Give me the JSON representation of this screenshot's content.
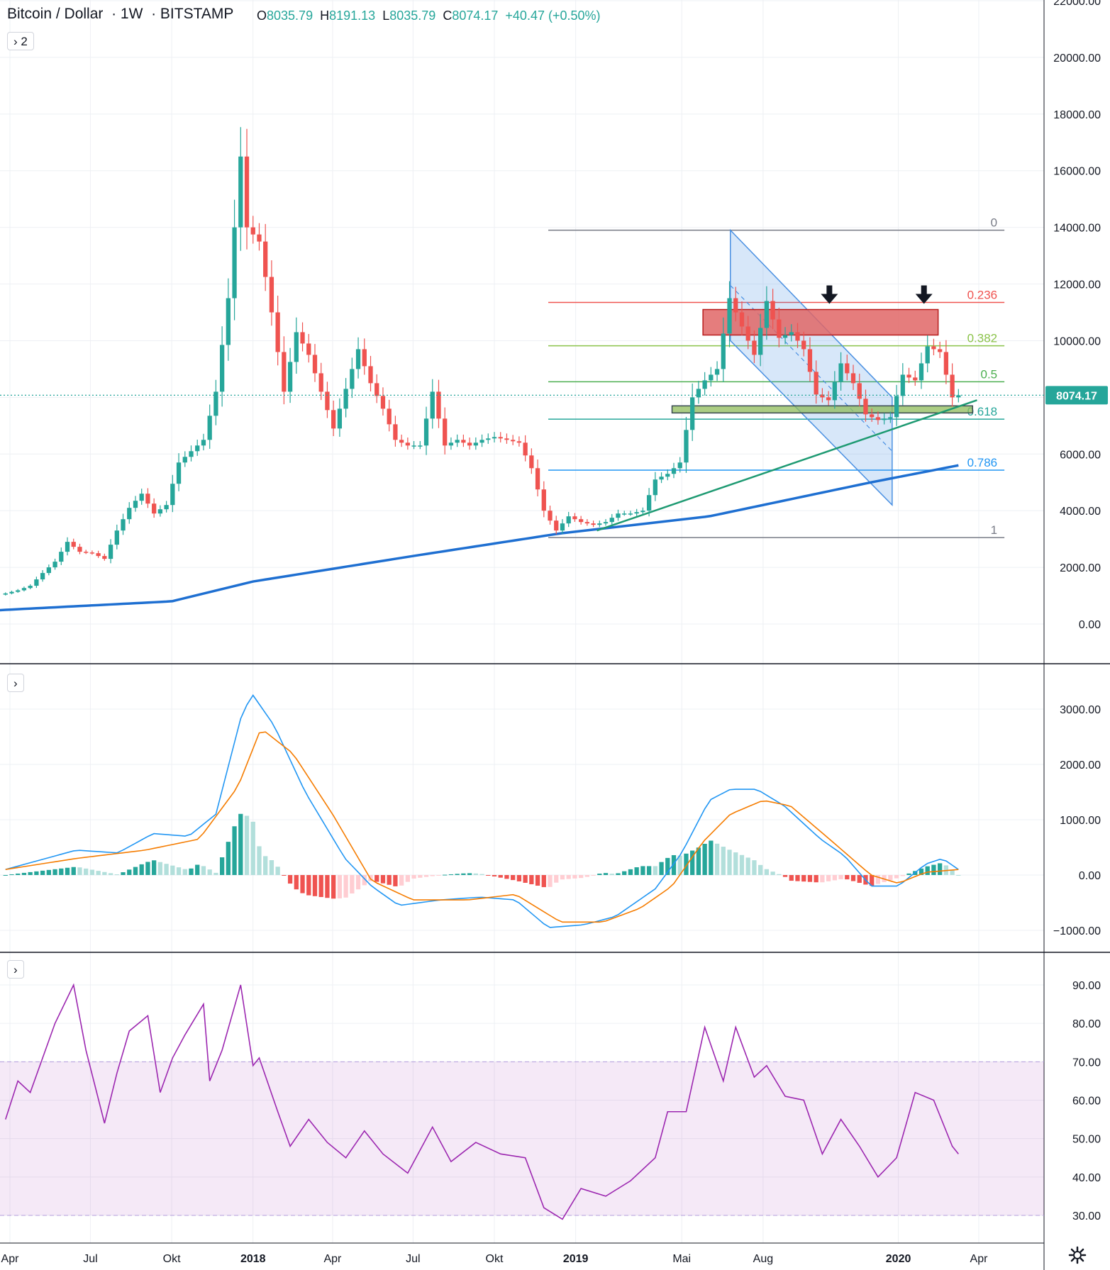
{
  "header": {
    "symbol": "Bitcoin / Dollar",
    "interval": "1W",
    "exchange": "BITSTAMP",
    "o_label": "O",
    "o_value": "8035.79",
    "h_label": "H",
    "h_value": "8191.13",
    "l_label": "L",
    "l_value": "8035.79",
    "c_label": "C",
    "c_value": "8074.17",
    "change": "+40.47 (+0.50%)"
  },
  "toggles": {
    "main": "2",
    "macd": "",
    "rsi": ""
  },
  "icons": {
    "collapse": "chevron-right-icon",
    "settings": "gear-icon"
  },
  "colors": {
    "up": "#26a69a",
    "down": "#ef5350",
    "ma": "#1e6fd1",
    "trendline": "#1e9a72",
    "channel": "#4a90e2",
    "resistance_zone": "#e06666",
    "support_zone": "#8fbc5a",
    "macd_line": "#2196f3",
    "signal_line": "#f57c00",
    "rsi": "#9c27b0",
    "rsi_band": "#e9d5f7",
    "price_tag": "#26a69a"
  },
  "chart_data": [
    {
      "type": "candlestick",
      "title": "Bitcoin / Dollar · 1W · BITSTAMP",
      "ylim": [
        -1100,
        22000
      ],
      "ytick_labels": [
        "22000.00",
        "20000.00",
        "18000.00",
        "16000.00",
        "14000.00",
        "12000.00",
        "10000.00",
        "8000.00",
        "6000.00",
        "4000.00",
        "2000.00",
        "0.00"
      ],
      "yticks": [
        22000,
        20000,
        18000,
        16000,
        14000,
        12000,
        10000,
        8000,
        6000,
        4000,
        2000,
        0
      ],
      "xtick_labels": [
        "Apr",
        "Jul",
        "Okt",
        "2018",
        "Apr",
        "Jul",
        "Okt",
        "2019",
        "Mai",
        "Aug",
        "2020",
        "Apr"
      ],
      "xticks": [
        "2017-04-01",
        "2017-07-01",
        "2017-10-01",
        "2018-01-01",
        "2018-04-01",
        "2018-07-01",
        "2018-10-01",
        "2019-01-01",
        "2019-05-01",
        "2019-08-01",
        "2020-01-01",
        "2020-04-01"
      ],
      "last_price": 8074.17,
      "last_price_label": "8074.17",
      "weekly_closes_approx": [
        [
          "2017-03-27",
          1080
        ],
        [
          "2017-04-10",
          1190
        ],
        [
          "2017-04-24",
          1350
        ],
        [
          "2017-05-08",
          1800
        ],
        [
          "2017-05-22",
          2200
        ],
        [
          "2017-06-05",
          2900
        ],
        [
          "2017-06-19",
          2550
        ],
        [
          "2017-07-03",
          2500
        ],
        [
          "2017-07-17",
          2300
        ],
        [
          "2017-07-31",
          3300
        ],
        [
          "2017-08-14",
          4100
        ],
        [
          "2017-08-28",
          4600
        ],
        [
          "2017-09-11",
          3900
        ],
        [
          "2017-09-25",
          4200
        ],
        [
          "2017-10-09",
          5700
        ],
        [
          "2017-10-23",
          6100
        ],
        [
          "2017-11-06",
          6500
        ],
        [
          "2017-11-20",
          8200
        ],
        [
          "2017-12-04",
          11500
        ],
        [
          "2017-12-18",
          16500
        ],
        [
          "2017-12-25",
          14000
        ],
        [
          "2018-01-08",
          13500
        ],
        [
          "2018-01-22",
          11000
        ],
        [
          "2018-02-05",
          8200
        ],
        [
          "2018-02-19",
          10300
        ],
        [
          "2018-03-05",
          9500
        ],
        [
          "2018-03-19",
          8200
        ],
        [
          "2018-04-02",
          6900
        ],
        [
          "2018-04-16",
          8300
        ],
        [
          "2018-04-30",
          9700
        ],
        [
          "2018-05-14",
          8500
        ],
        [
          "2018-05-28",
          7600
        ],
        [
          "2018-06-11",
          6500
        ],
        [
          "2018-06-25",
          6300
        ],
        [
          "2018-07-09",
          6300
        ],
        [
          "2018-07-23",
          8200
        ],
        [
          "2018-08-06",
          6300
        ],
        [
          "2018-08-20",
          6500
        ],
        [
          "2018-09-03",
          6300
        ],
        [
          "2018-09-17",
          6500
        ],
        [
          "2018-10-01",
          6600
        ],
        [
          "2018-10-15",
          6500
        ],
        [
          "2018-10-29",
          6400
        ],
        [
          "2018-11-12",
          5500
        ],
        [
          "2018-11-26",
          4000
        ],
        [
          "2018-12-10",
          3300
        ],
        [
          "2018-12-24",
          3800
        ],
        [
          "2019-01-07",
          3600
        ],
        [
          "2019-01-21",
          3500
        ],
        [
          "2019-02-04",
          3600
        ],
        [
          "2019-02-18",
          3900
        ],
        [
          "2019-03-04",
          3900
        ],
        [
          "2019-03-18",
          4000
        ],
        [
          "2019-04-01",
          5100
        ],
        [
          "2019-04-15",
          5300
        ],
        [
          "2019-04-29",
          5700
        ],
        [
          "2019-05-13",
          8000
        ],
        [
          "2019-05-27",
          8600
        ],
        [
          "2019-06-10",
          9000
        ],
        [
          "2019-06-24",
          11500
        ],
        [
          "2019-07-08",
          10500
        ],
        [
          "2019-07-22",
          9500
        ],
        [
          "2019-08-05",
          11400
        ],
        [
          "2019-08-19",
          10100
        ],
        [
          "2019-09-02",
          10300
        ],
        [
          "2019-09-16",
          9700
        ],
        [
          "2019-09-30",
          8100
        ],
        [
          "2019-10-14",
          7900
        ],
        [
          "2019-10-28",
          9200
        ],
        [
          "2019-11-11",
          8500
        ],
        [
          "2019-11-25",
          7400
        ],
        [
          "2019-12-09",
          7200
        ],
        [
          "2019-12-23",
          7300
        ],
        [
          "2020-01-06",
          8800
        ],
        [
          "2020-01-20",
          8600
        ],
        [
          "2020-02-03",
          9800
        ],
        [
          "2020-02-17",
          9600
        ],
        [
          "2020-03-02",
          8000
        ],
        [
          "2020-03-09",
          8074.17
        ]
      ],
      "moving_average_approx": [
        [
          "2017-03-27",
          500
        ],
        [
          "2017-10-01",
          800
        ],
        [
          "2018-01-01",
          1500
        ],
        [
          "2018-07-01",
          2400
        ],
        [
          "2018-12-15",
          3200
        ],
        [
          "2019-06-01",
          3800
        ],
        [
          "2019-12-01",
          5000
        ],
        [
          "2020-03-09",
          5600
        ]
      ],
      "fibonacci": {
        "start_date": "2018-12-01",
        "end_date": "2020-04-30",
        "levels": [
          {
            "label": "0",
            "price": 13900
          },
          {
            "label": "0.236",
            "price": 11350
          },
          {
            "label": "0.382",
            "price": 9820
          },
          {
            "label": "0.5",
            "price": 8550
          },
          {
            "label": "0.618",
            "price": 7230
          },
          {
            "label": "0.786",
            "price": 5430
          },
          {
            "label": "1",
            "price": 3050
          }
        ]
      },
      "annotations": [
        {
          "kind": "resistance-zone",
          "from": "2019-05-25",
          "to": "2020-02-15",
          "low": 10200,
          "high": 11100
        },
        {
          "kind": "support-zone",
          "from": "2019-04-20",
          "to": "2020-03-25",
          "low": 7450,
          "high": 7700
        },
        {
          "kind": "trendline",
          "points": [
            [
              "2019-01-25",
              3300
            ],
            [
              "2020-03-30",
              7900
            ]
          ]
        },
        {
          "kind": "descending-channel",
          "points": [
            [
              "2019-06-25",
              13900
            ],
            [
              "2019-12-25",
              8000
            ],
            [
              "2019-12-25",
              4200
            ],
            [
              "2019-06-25",
              10000
            ]
          ]
        },
        {
          "kind": "arrow-down",
          "date": "2019-10-15",
          "price": 11400
        },
        {
          "kind": "arrow-down",
          "date": "2020-01-30",
          "price": 11400
        }
      ]
    },
    {
      "type": "line",
      "title": "MACD",
      "ylim": [
        -1350,
        3600
      ],
      "ytick_labels": [
        "3000.00",
        "2000.00",
        "1000.00",
        "0.00",
        "−1000.00"
      ],
      "yticks": [
        3000,
        2000,
        1000,
        0,
        -1000
      ],
      "macd_approx": [
        [
          "2017-03-27",
          100
        ],
        [
          "2017-06-15",
          450
        ],
        [
          "2017-08-01",
          400
        ],
        [
          "2017-09-10",
          750
        ],
        [
          "2017-10-20",
          700
        ],
        [
          "2017-11-20",
          1100
        ],
        [
          "2017-12-20",
          2950
        ],
        [
          "2018-01-01",
          3250
        ],
        [
          "2018-01-25",
          2700
        ],
        [
          "2018-03-01",
          1500
        ],
        [
          "2018-04-15",
          300
        ],
        [
          "2018-05-15",
          -200
        ],
        [
          "2018-06-15",
          -550
        ],
        [
          "2018-08-01",
          -450
        ],
        [
          "2018-09-15",
          -400
        ],
        [
          "2018-10-25",
          -450
        ],
        [
          "2018-12-01",
          -950
        ],
        [
          "2019-01-10",
          -900
        ],
        [
          "2019-02-15",
          -750
        ],
        [
          "2019-04-01",
          -250
        ],
        [
          "2019-05-01",
          400
        ],
        [
          "2019-06-01",
          1350
        ],
        [
          "2019-06-25",
          1550
        ],
        [
          "2019-07-25",
          1550
        ],
        [
          "2019-08-25",
          1250
        ],
        [
          "2019-10-05",
          650
        ],
        [
          "2019-11-01",
          350
        ],
        [
          "2019-12-01",
          -200
        ],
        [
          "2020-01-01",
          -200
        ],
        [
          "2020-02-01",
          200
        ],
        [
          "2020-02-20",
          300
        ],
        [
          "2020-03-09",
          100
        ]
      ],
      "signal_approx": [
        [
          "2017-03-27",
          100
        ],
        [
          "2017-06-15",
          300
        ],
        [
          "2017-09-01",
          450
        ],
        [
          "2017-11-01",
          650
        ],
        [
          "2017-12-15",
          1600
        ],
        [
          "2018-01-10",
          2650
        ],
        [
          "2018-02-15",
          2200
        ],
        [
          "2018-04-01",
          1100
        ],
        [
          "2018-05-15",
          -100
        ],
        [
          "2018-07-01",
          -450
        ],
        [
          "2018-09-01",
          -450
        ],
        [
          "2018-10-25",
          -350
        ],
        [
          "2018-12-15",
          -850
        ],
        [
          "2019-02-01",
          -850
        ],
        [
          "2019-03-15",
          -600
        ],
        [
          "2019-04-20",
          -200
        ],
        [
          "2019-05-25",
          600
        ],
        [
          "2019-06-25",
          1100
        ],
        [
          "2019-08-01",
          1350
        ],
        [
          "2019-09-01",
          1250
        ],
        [
          "2019-10-15",
          650
        ],
        [
          "2019-12-01",
          0
        ],
        [
          "2020-01-01",
          -150
        ],
        [
          "2020-02-01",
          50
        ],
        [
          "2020-03-09",
          100
        ]
      ]
    },
    {
      "type": "line",
      "title": "RSI",
      "ylim": [
        26,
        97
      ],
      "ytick_labels": [
        "90.00",
        "80.00",
        "70.00",
        "60.00",
        "50.00",
        "40.00",
        "30.00"
      ],
      "yticks": [
        90,
        80,
        70,
        60,
        50,
        40,
        30
      ],
      "band": [
        30,
        70
      ],
      "rsi_approx": [
        [
          "2017-03-27",
          55
        ],
        [
          "2017-04-10",
          65
        ],
        [
          "2017-04-24",
          62
        ],
        [
          "2017-05-22",
          80
        ],
        [
          "2017-06-12",
          90
        ],
        [
          "2017-06-26",
          73
        ],
        [
          "2017-07-17",
          54
        ],
        [
          "2017-07-31",
          67
        ],
        [
          "2017-08-14",
          78
        ],
        [
          "2017-09-04",
          82
        ],
        [
          "2017-09-18",
          62
        ],
        [
          "2017-10-02",
          71
        ],
        [
          "2017-10-16",
          77
        ],
        [
          "2017-11-06",
          85
        ],
        [
          "2017-11-13",
          65
        ],
        [
          "2017-11-27",
          73
        ],
        [
          "2017-12-18",
          90
        ],
        [
          "2018-01-01",
          69
        ],
        [
          "2018-01-08",
          71
        ],
        [
          "2018-01-29",
          57
        ],
        [
          "2018-02-12",
          48
        ],
        [
          "2018-03-05",
          55
        ],
        [
          "2018-03-26",
          49
        ],
        [
          "2018-04-16",
          45
        ],
        [
          "2018-05-07",
          52
        ],
        [
          "2018-05-28",
          46
        ],
        [
          "2018-06-25",
          41
        ],
        [
          "2018-07-23",
          53
        ],
        [
          "2018-08-13",
          44
        ],
        [
          "2018-09-10",
          49
        ],
        [
          "2018-10-08",
          46
        ],
        [
          "2018-11-05",
          45
        ],
        [
          "2018-11-26",
          32
        ],
        [
          "2018-12-17",
          29
        ],
        [
          "2019-01-07",
          37
        ],
        [
          "2019-02-04",
          35
        ],
        [
          "2019-03-04",
          39
        ],
        [
          "2019-04-01",
          45
        ],
        [
          "2019-04-15",
          57
        ],
        [
          "2019-05-06",
          57
        ],
        [
          "2019-05-27",
          79
        ],
        [
          "2019-06-17",
          65
        ],
        [
          "2019-07-01",
          79
        ],
        [
          "2019-07-22",
          66
        ],
        [
          "2019-08-05",
          69
        ],
        [
          "2019-08-26",
          61
        ],
        [
          "2019-09-16",
          60
        ],
        [
          "2019-10-07",
          46
        ],
        [
          "2019-10-28",
          55
        ],
        [
          "2019-11-18",
          48
        ],
        [
          "2019-12-09",
          40
        ],
        [
          "2019-12-30",
          45
        ],
        [
          "2020-01-20",
          62
        ],
        [
          "2020-02-10",
          60
        ],
        [
          "2020-03-02",
          48
        ],
        [
          "2020-03-09",
          46
        ]
      ]
    }
  ]
}
